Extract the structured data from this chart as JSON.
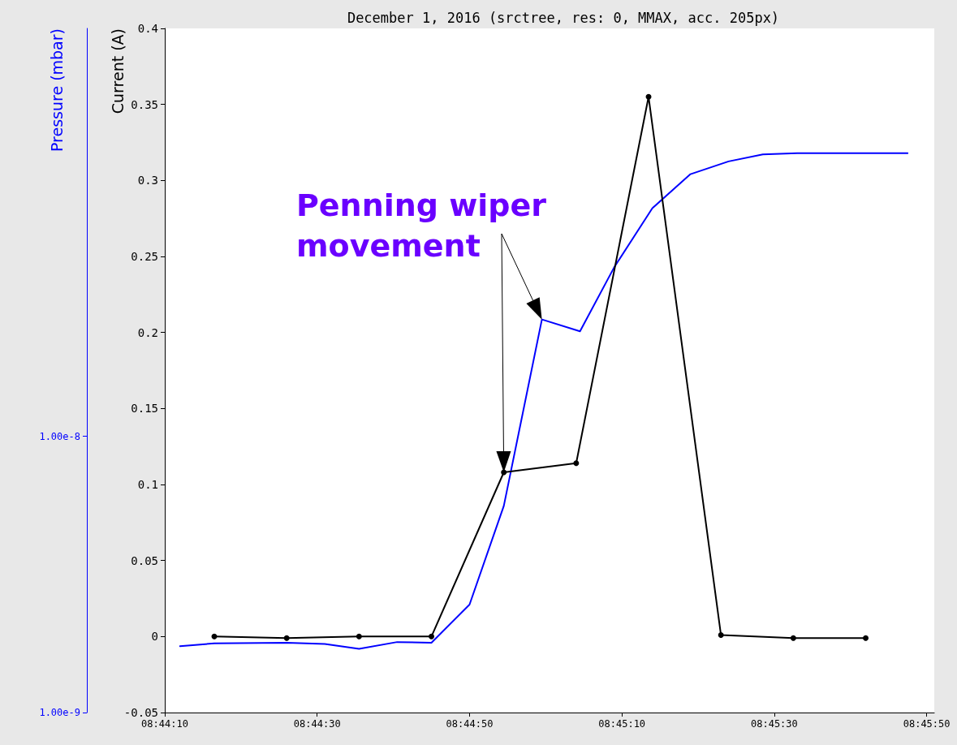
{
  "chart_data": {
    "type": "line",
    "title": "December 1, 2016 (srctree, res: 0, MMAX, acc. 205px)",
    "ylabel": "Current (A)",
    "y2label": "Pressure (mbar)",
    "annotations": [
      "Penning wiper movement"
    ],
    "xlim": [
      "2016-12-01T08:44:10",
      "2016-12-01T08:45:51"
    ],
    "xticks": [
      {
        "value": "2016-12-01T08:44:10",
        "label": "08:44:10"
      },
      {
        "value": "2016-12-01T08:44:30",
        "label": "08:44:30"
      },
      {
        "value": "2016-12-01T08:44:50",
        "label": "08:44:50"
      },
      {
        "value": "2016-12-01T08:45:10",
        "label": "08:45:10"
      },
      {
        "value": "2016-12-01T08:45:30",
        "label": "08:45:30"
      },
      {
        "value": "2016-12-01T08:45:50",
        "label": "08:45:50"
      }
    ],
    "ylim": [
      -0.05,
      0.4
    ],
    "yticks": [
      -0.05,
      0,
      0.05,
      0.1,
      0.15,
      0.2,
      0.25,
      0.3,
      0.35,
      0.4
    ],
    "y2lim": [
      1e-09,
      3e-07
    ],
    "y2ticks": [
      {
        "value": 1e-09,
        "label": "1.00e-9"
      },
      {
        "value": 1e-08,
        "label": "1.00e-8"
      }
    ],
    "log": "y2",
    "grid": false,
    "series": [
      {
        "color": "#0000ff",
        "axis": "y2",
        "marker": "none",
        "x": [
          "2016-12-01T08:44:12",
          "2016-12-01T08:44:16.5",
          "2016-12-01T08:44:26",
          "2016-12-01T08:44:31",
          "2016-12-01T08:44:35.5",
          "2016-12-01T08:44:40.5",
          "2016-12-01T08:44:45",
          "2016-12-01T08:44:50",
          "2016-12-01T08:44:54.5",
          "2016-12-01T08:44:59.5",
          "2016-12-01T08:45:04.5",
          "2016-12-01T08:45:09",
          "2016-12-01T08:45:14",
          "2016-12-01T08:45:19",
          "2016-12-01T08:45:24",
          "2016-12-01T08:45:28.5",
          "2016-12-01T08:45:33",
          "2016-12-01T08:45:47.5"
        ],
        "values": [
          1.74e-09,
          1.78e-09,
          1.79e-09,
          1.77e-09,
          1.7e-09,
          1.8e-09,
          1.79e-09,
          2.46e-09,
          5.6e-09,
          2.65e-08,
          2.4e-08,
          4.1e-08,
          6.7e-08,
          8.9e-08,
          9.9e-08,
          1.05e-07,
          1.06e-07,
          1.06e-07
        ]
      },
      {
        "color": "#000000",
        "marker": "circle",
        "x": [
          "2016-12-01T08:44:16.5",
          "2016-12-01T08:44:26",
          "2016-12-01T08:44:35.5",
          "2016-12-01T08:44:45",
          "2016-12-01T08:44:54.5",
          "2016-12-01T08:45:04",
          "2016-12-01T08:45:13.5",
          "2016-12-01T08:45:23",
          "2016-12-01T08:45:32.5",
          "2016-12-01T08:45:42"
        ],
        "values": [
          0,
          -0.001,
          0,
          0,
          0.108,
          0.114,
          0.355,
          0.001,
          -0.001,
          -0.001
        ]
      }
    ]
  }
}
